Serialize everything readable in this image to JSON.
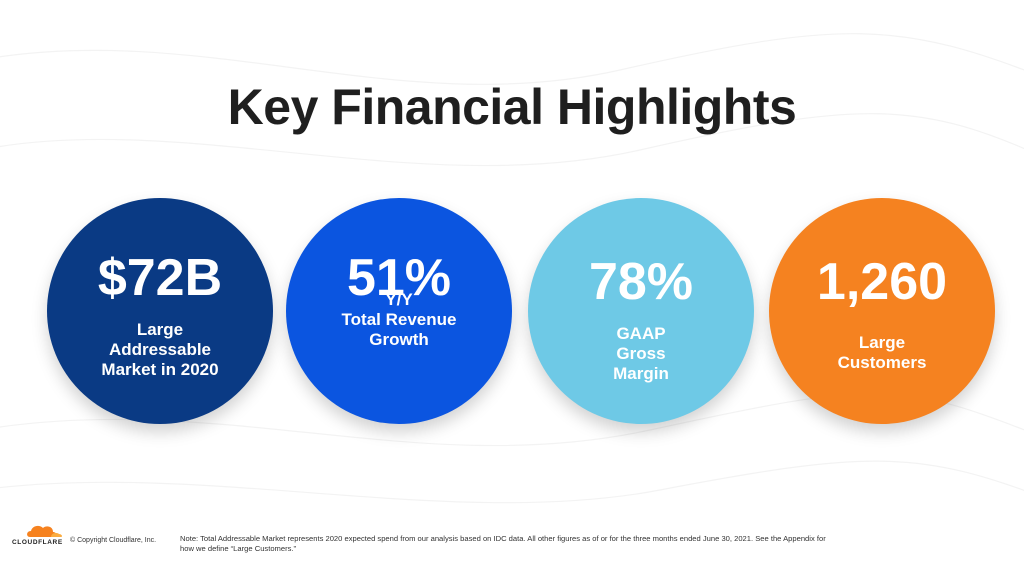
{
  "slide": {
    "title": "Key Financial Highlights"
  },
  "highlights": [
    {
      "value": "$72B",
      "lines": [
        "Large",
        "Addressable",
        "Market in 2020"
      ],
      "color": "#0a3a84"
    },
    {
      "value": "51%",
      "lines": [
        "Y/Y",
        "Total Revenue",
        "Growth"
      ],
      "color": "#0b55e0"
    },
    {
      "value": "78%",
      "lines": [
        "GAAP",
        "Gross",
        "Margin"
      ],
      "color": "#6ec9e6"
    },
    {
      "value": "1,260",
      "lines": [
        "Large",
        "Customers"
      ],
      "color": "#f58220"
    }
  ],
  "footer": {
    "logo_text": "CLOUDFLARE",
    "copyright": "© Copyright Cloudflare, Inc.",
    "note_line1": "Note: Total Addressable Market represents 2020 expected spend from our analysis based on IDC data. All other figures as of or for the three months ended June 30, 2021. See the Appendix for",
    "note_line2": "how we define “Large Customers.”"
  },
  "colors": {
    "logo_orange": "#f6821f",
    "logo_orange_light": "#fbad41",
    "title_text": "#1f1f1f"
  }
}
